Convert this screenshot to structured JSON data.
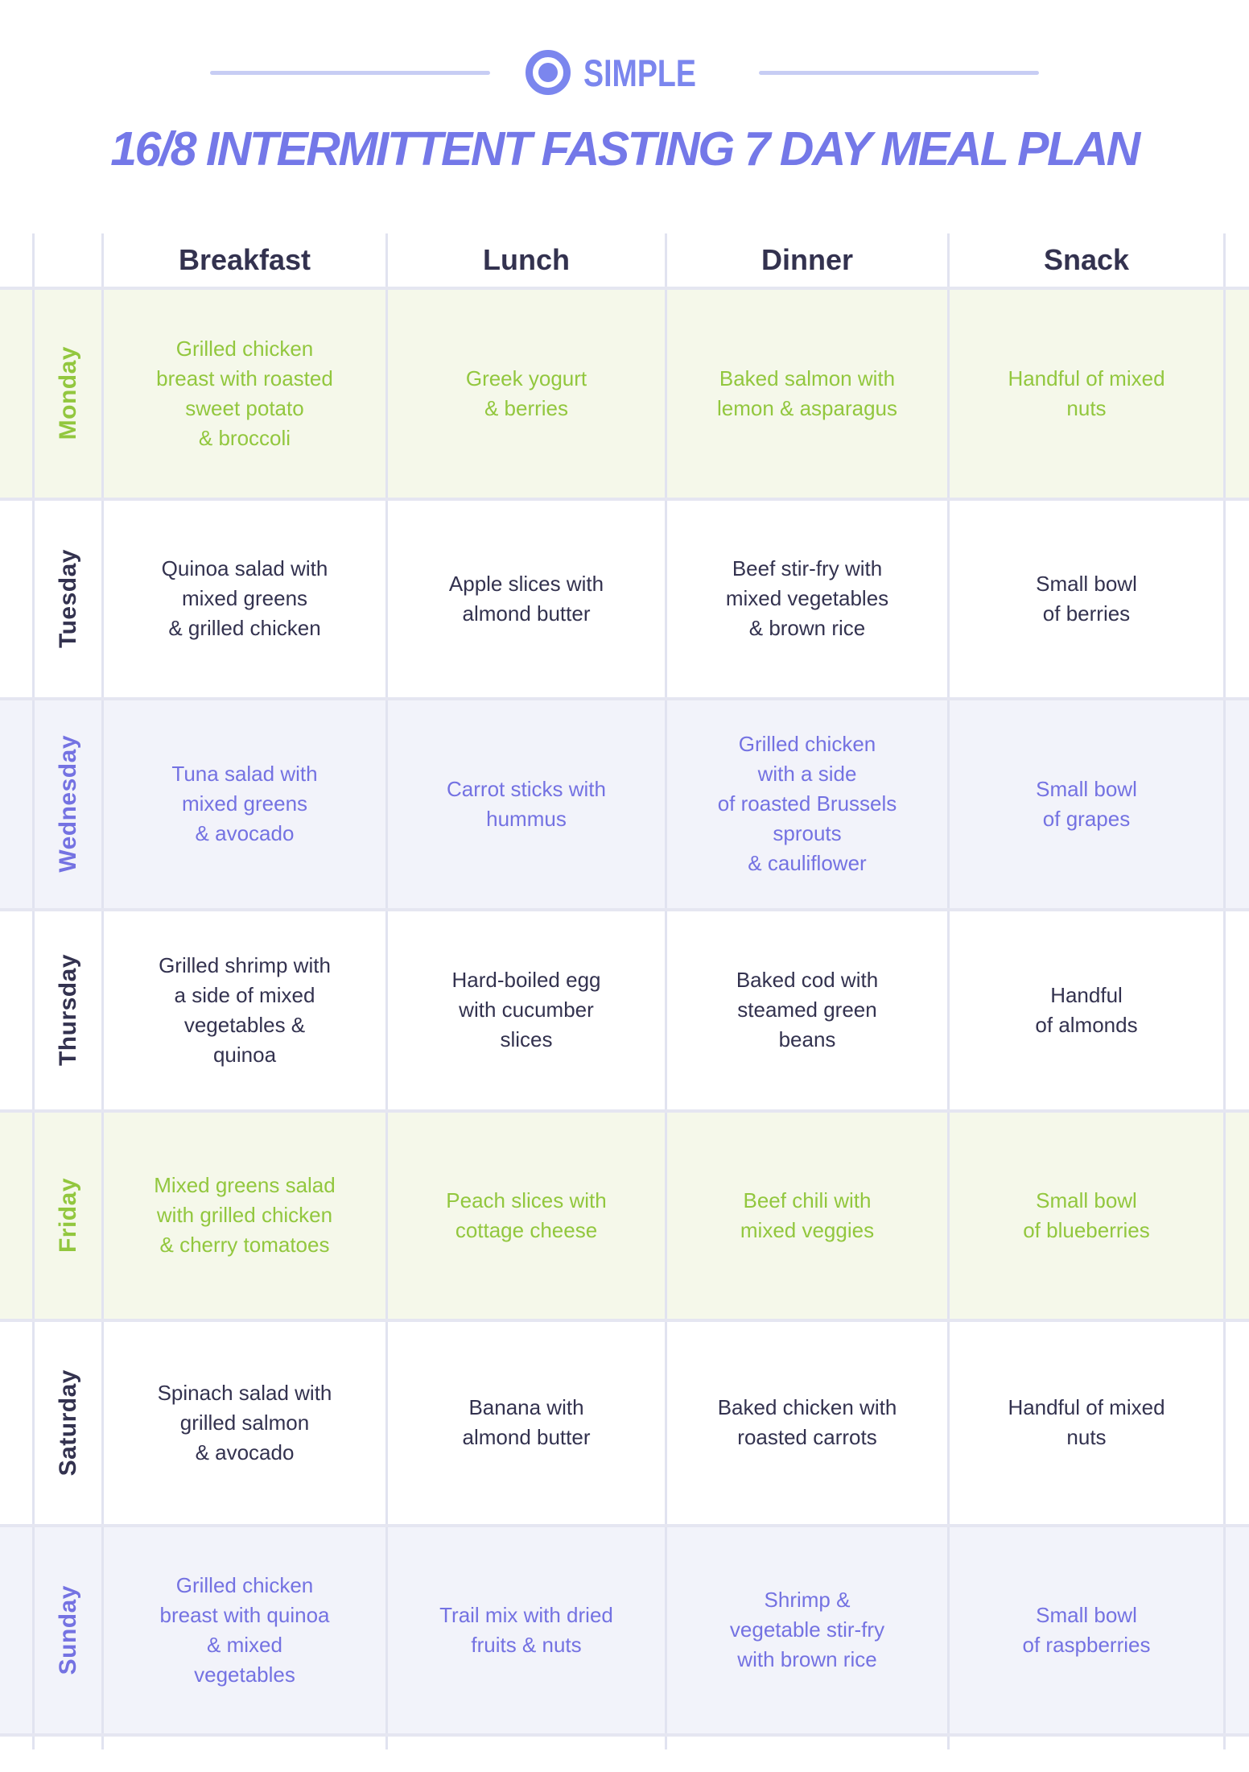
{
  "logo": {
    "icon": "target-icon",
    "text": "SIMPLE"
  },
  "title": "16/8 INTERMITTENT FASTING 7 DAY MEAL PLAN",
  "colors": {
    "logo_purple": "#7B86EE",
    "title_purple": "#7478E8",
    "navy_text": "#33324F",
    "green_text": "#92C73E",
    "purple_text": "#7472E2",
    "green_row_bg": "#F5F8EA",
    "lavender_row_bg": "#F2F3FA",
    "white_row_bg": "#FFFFFF",
    "vline": "#E1E3F0",
    "hline": "#E5E6F1",
    "rule": "#C7CDF4"
  },
  "table": {
    "columns": [
      "Breakfast",
      "Lunch",
      "Dinner",
      "Snack"
    ],
    "rows": [
      {
        "day": "Monday",
        "theme": "green",
        "meals": [
          "Grilled chicken\nbreast with roasted\nsweet potato\n& broccoli",
          "Greek yogurt\n& berries",
          "Baked salmon with\nlemon & asparagus",
          "Handful of mixed\nnuts"
        ]
      },
      {
        "day": "Tuesday",
        "theme": "white",
        "meals": [
          "Quinoa salad with\nmixed greens\n& grilled chicken",
          "Apple slices with\nalmond butter",
          "Beef stir-fry with\nmixed vegetables\n& brown rice",
          "Small bowl\nof berries"
        ]
      },
      {
        "day": "Wednesday",
        "theme": "lavender",
        "meals": [
          "Tuna salad with\nmixed greens\n& avocado",
          "Carrot sticks with\nhummus",
          "Grilled chicken\nwith a side\nof roasted Brussels\nsprouts\n& cauliflower",
          "Small bowl\nof grapes"
        ]
      },
      {
        "day": "Thursday",
        "theme": "white",
        "meals": [
          "Grilled shrimp with\na side of mixed\nvegetables &\nquinoa",
          "Hard-boiled egg\nwith cucumber\nslices",
          "Baked cod with\nsteamed green\nbeans",
          "Handful\nof almonds"
        ]
      },
      {
        "day": "Friday",
        "theme": "green",
        "meals": [
          "Mixed greens salad\nwith grilled chicken\n& cherry tomatoes",
          "Peach slices with\ncottage cheese",
          "Beef chili with\nmixed veggies",
          "Small bowl\nof blueberries"
        ]
      },
      {
        "day": "Saturday",
        "theme": "white",
        "meals": [
          "Spinach salad with\ngrilled salmon\n& avocado",
          "Banana with\nalmond butter",
          "Baked chicken with\nroasted carrots",
          "Handful of mixed\nnuts"
        ]
      },
      {
        "day": "Sunday",
        "theme": "lavender",
        "meals": [
          "Grilled chicken\nbreast with quinoa\n& mixed\nvegetables",
          "Trail mix with dried\nfruits & nuts",
          "Shrimp &\nvegetable stir-fry\nwith brown rice",
          "Small bowl\nof raspberries"
        ]
      }
    ]
  }
}
